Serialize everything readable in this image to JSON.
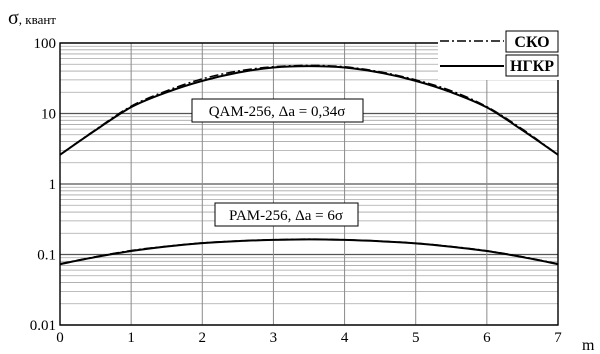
{
  "chart_data": {
    "type": "line",
    "title": "",
    "ylabel_symbol": "σ",
    "ylabel_unit": ", квант",
    "xlabel": "m",
    "xlim": [
      0,
      7
    ],
    "ylim": [
      0.01,
      100
    ],
    "yscale": "log",
    "grid": true,
    "x_ticks": [
      "0",
      "1",
      "2",
      "3",
      "4",
      "5",
      "6",
      "7"
    ],
    "y_ticks": [
      "0.01",
      "0.1",
      "1",
      "10",
      "100"
    ],
    "legend": [
      {
        "label": "СКО",
        "style": "dash-dot"
      },
      {
        "label": "НГКР",
        "style": "solid"
      }
    ],
    "annotations": [
      "QAM-256,  Δa = 0,34σ",
      "PAM-256,  Δa = 6σ"
    ],
    "series": [
      {
        "name": "СКО",
        "group": "QAM-256",
        "x": [
          0,
          0.5,
          1,
          1.5,
          2,
          2.5,
          3,
          3.5,
          4,
          4.5,
          5,
          5.5,
          6,
          6.5,
          7
        ],
        "values": [
          2.6,
          5.9,
          12.7,
          21,
          31,
          40,
          46,
          48,
          46,
          39,
          30,
          21,
          12.5,
          6.0,
          2.6
        ]
      },
      {
        "name": "НГКР",
        "group": "QAM-256",
        "x": [
          0,
          0.5,
          1,
          1.5,
          2,
          2.5,
          3,
          3.5,
          4,
          4.5,
          5,
          5.5,
          6,
          6.5,
          7
        ],
        "values": [
          2.6,
          5.8,
          12.3,
          20,
          29,
          38,
          45,
          47,
          45,
          38,
          29,
          20,
          12.2,
          5.8,
          2.6
        ]
      },
      {
        "name": "СКО",
        "group": "PAM-256",
        "x": [
          0,
          0.5,
          1,
          1.5,
          2,
          2.5,
          3,
          3.5,
          4,
          4.5,
          5,
          5.5,
          6,
          6.5,
          7
        ],
        "values": [
          0.074,
          0.093,
          0.114,
          0.131,
          0.146,
          0.156,
          0.162,
          0.165,
          0.162,
          0.155,
          0.145,
          0.13,
          0.113,
          0.093,
          0.074
        ]
      },
      {
        "name": "НГКР",
        "group": "PAM-256",
        "x": [
          0,
          0.5,
          1,
          1.5,
          2,
          2.5,
          3,
          3.5,
          4,
          4.5,
          5,
          5.5,
          6,
          6.5,
          7
        ],
        "values": [
          0.073,
          0.092,
          0.112,
          0.13,
          0.145,
          0.155,
          0.161,
          0.164,
          0.161,
          0.154,
          0.144,
          0.129,
          0.112,
          0.092,
          0.073
        ]
      }
    ]
  }
}
